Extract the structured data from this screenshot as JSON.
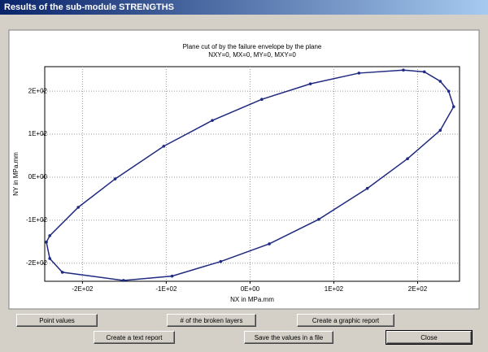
{
  "window": {
    "title": "Results of the sub-module STRENGTHS"
  },
  "chart_data": {
    "type": "line",
    "title": "Plane cut of by the failure envelope by the plane",
    "subtitle": "NXY=0, MX=0, MY=0, MXY=0",
    "x_label": "NX in MPa.mm",
    "y_label": "NY in MPa.mm",
    "xlim": [
      -245,
      250
    ],
    "ylim": [
      -242,
      257
    ],
    "xticks": [
      {
        "value": -200,
        "label": "-2E+02"
      },
      {
        "value": -100,
        "label": "-1E+02"
      },
      {
        "value": 0,
        "label": "0E+00"
      },
      {
        "value": 100,
        "label": "1E+02"
      },
      {
        "value": 200,
        "label": "2E+02"
      }
    ],
    "yticks": [
      {
        "value": -200,
        "label": "-2E+02"
      },
      {
        "value": -100,
        "label": "-1E+02"
      },
      {
        "value": 0,
        "label": "0E+00"
      },
      {
        "value": 100,
        "label": "1E+02"
      },
      {
        "value": 200,
        "label": "2E+02"
      }
    ],
    "grid": true,
    "color": "#1f2a80",
    "x": [
      183,
      130,
      72,
      14,
      -45,
      -103,
      -161,
      -205,
      -239,
      -243,
      -239,
      -224,
      -151,
      -93,
      -35,
      23,
      82,
      140,
      188,
      227,
      243,
      237,
      227,
      208
    ],
    "values": [
      249,
      242,
      217,
      181,
      132,
      72,
      -4,
      -70,
      -136,
      -151,
      -189,
      -221,
      -240,
      -230,
      -196,
      -155,
      -98,
      -26,
      43,
      109,
      164,
      200,
      223,
      245
    ]
  },
  "buttons": [
    "Point values",
    "# of the broken layers",
    "Create a graphic report",
    "Create a text report",
    "Save the values in a file",
    "Close"
  ]
}
